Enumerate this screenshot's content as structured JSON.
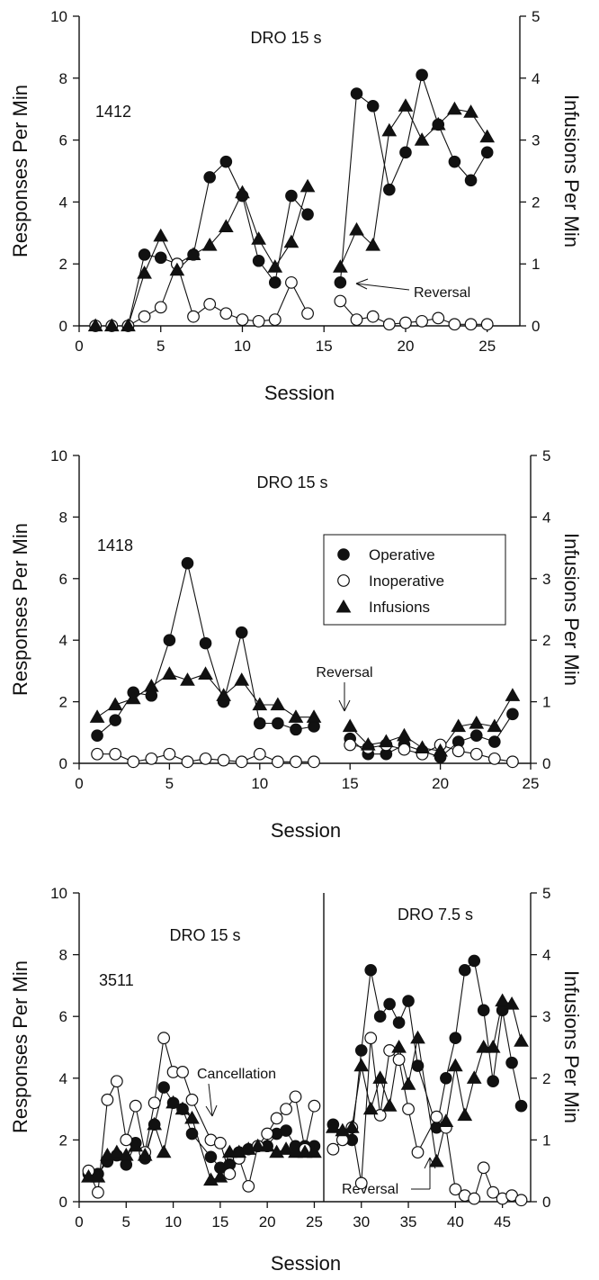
{
  "chart_data": [
    {
      "type": "line",
      "subject": "1412",
      "annotations": [
        "DRO 15 s",
        "Reversal"
      ],
      "xlabel": "Session",
      "ylabel": "Responses Per Min",
      "y2label": "Infusions Per Min",
      "xlim": [
        0,
        27
      ],
      "xticks": [
        0,
        5,
        10,
        15,
        20,
        25
      ],
      "ylim": [
        0,
        10
      ],
      "yticks": [
        0,
        2,
        4,
        6,
        8,
        10
      ],
      "y2lim": [
        0,
        5
      ],
      "y2ticks": [
        0,
        1,
        2,
        3,
        4,
        5
      ],
      "phase_break_after_session": 15,
      "series": [
        {
          "name": "Operative",
          "marker": "filled-circle",
          "axis": "left",
          "x": [
            1,
            2,
            3,
            4,
            5,
            6,
            7,
            8,
            9,
            10,
            11,
            12,
            13,
            14,
            16,
            17,
            18,
            19,
            20,
            21,
            22,
            23,
            24,
            25
          ],
          "values": [
            0.0,
            0.0,
            0.0,
            2.3,
            2.2,
            2.0,
            2.3,
            4.8,
            5.3,
            4.2,
            2.1,
            1.4,
            4.2,
            3.6,
            1.4,
            7.5,
            7.1,
            4.4,
            5.6,
            8.1,
            6.5,
            5.3,
            4.7,
            5.6
          ]
        },
        {
          "name": "Inoperative",
          "marker": "open-circle",
          "axis": "left",
          "x": [
            1,
            2,
            3,
            4,
            5,
            6,
            7,
            8,
            9,
            10,
            11,
            12,
            13,
            14,
            16,
            17,
            18,
            19,
            20,
            21,
            22,
            23,
            24,
            25
          ],
          "values": [
            0.0,
            0.0,
            0.0,
            0.3,
            0.6,
            2.0,
            0.3,
            0.7,
            0.4,
            0.2,
            0.15,
            0.2,
            1.4,
            0.4,
            0.8,
            0.2,
            0.3,
            0.05,
            0.1,
            0.15,
            0.25,
            0.05,
            0.05,
            0.05
          ]
        },
        {
          "name": "Infusions",
          "marker": "filled-triangle",
          "axis": "right",
          "x": [
            1,
            2,
            3,
            4,
            5,
            6,
            7,
            8,
            9,
            10,
            11,
            12,
            13,
            14,
            16,
            17,
            18,
            19,
            20,
            21,
            22,
            23,
            24,
            25
          ],
          "values": [
            0.0,
            0.0,
            0.0,
            0.85,
            1.45,
            0.9,
            1.15,
            1.3,
            1.6,
            2.15,
            1.4,
            0.95,
            1.35,
            2.25,
            0.95,
            1.55,
            1.3,
            3.15,
            3.55,
            3.0,
            3.25,
            3.5,
            3.45,
            3.05
          ]
        }
      ]
    },
    {
      "type": "line",
      "subject": "1418",
      "annotations": [
        "DRO 15 s",
        "Reversal"
      ],
      "xlabel": "Session",
      "ylabel": "Responses Per Min",
      "y2label": "Infusions Per Min",
      "xlim": [
        0,
        25
      ],
      "xticks": [
        0,
        5,
        10,
        15,
        20,
        25
      ],
      "ylim": [
        0,
        10
      ],
      "yticks": [
        0,
        2,
        4,
        6,
        8,
        10
      ],
      "y2lim": [
        0,
        5
      ],
      "y2ticks": [
        0,
        1,
        2,
        3,
        4,
        5
      ],
      "phase_break_after_session": 14,
      "legend": {
        "position": "upper-right",
        "entries": [
          "Operative",
          "Inoperative",
          "Infusions"
        ]
      },
      "series": [
        {
          "name": "Operative",
          "marker": "filled-circle",
          "axis": "left",
          "x": [
            1,
            2,
            3,
            4,
            5,
            6,
            7,
            8,
            9,
            10,
            11,
            12,
            13,
            15,
            16,
            17,
            18,
            19,
            20,
            21,
            22,
            23,
            24
          ],
          "values": [
            0.9,
            1.4,
            2.3,
            2.2,
            4.0,
            6.5,
            3.9,
            2.0,
            4.25,
            1.3,
            1.3,
            1.1,
            1.2,
            0.8,
            0.3,
            0.3,
            0.6,
            0.4,
            0.2,
            0.7,
            0.9,
            0.7,
            1.6
          ]
        },
        {
          "name": "Inoperative",
          "marker": "open-circle",
          "axis": "left",
          "x": [
            1,
            2,
            3,
            4,
            5,
            6,
            7,
            8,
            9,
            10,
            11,
            12,
            13,
            15,
            16,
            17,
            18,
            19,
            20,
            21,
            22,
            23,
            24
          ],
          "values": [
            0.3,
            0.3,
            0.05,
            0.15,
            0.3,
            0.05,
            0.15,
            0.1,
            0.05,
            0.3,
            0.05,
            0.05,
            0.05,
            0.6,
            0.5,
            0.6,
            0.45,
            0.3,
            0.6,
            0.4,
            0.3,
            0.15,
            0.05
          ]
        },
        {
          "name": "Infusions",
          "marker": "filled-triangle",
          "axis": "right",
          "x": [
            1,
            2,
            3,
            4,
            5,
            6,
            7,
            8,
            9,
            10,
            11,
            12,
            13,
            15,
            16,
            17,
            18,
            19,
            20,
            21,
            22,
            23,
            24
          ],
          "values": [
            0.75,
            0.95,
            1.05,
            1.25,
            1.45,
            1.35,
            1.45,
            1.1,
            1.35,
            0.95,
            0.95,
            0.75,
            0.75,
            0.6,
            0.3,
            0.35,
            0.45,
            0.25,
            0.2,
            0.6,
            0.65,
            0.6,
            1.1
          ]
        }
      ]
    },
    {
      "type": "line",
      "subject": "3511",
      "annotations": [
        "DRO 15 s",
        "DRO 7.5 s",
        "Cancellation",
        "Reversal"
      ],
      "xlabel": "Session",
      "ylabel": "Responses Per Min",
      "y2label": "Infusions Per Min",
      "xlim": [
        0,
        48
      ],
      "xticks": [
        0,
        5,
        10,
        15,
        20,
        25,
        30,
        35,
        40,
        45
      ],
      "ylim": [
        0,
        10
      ],
      "yticks": [
        0,
        2,
        4,
        6,
        8,
        10
      ],
      "y2lim": [
        0,
        5
      ],
      "y2ticks": [
        0,
        1,
        2,
        3,
        4,
        5
      ],
      "phase_line_at_session": 26,
      "series": [
        {
          "name": "Operative",
          "marker": "filled-circle",
          "axis": "left",
          "x": [
            1,
            2,
            3,
            4,
            5,
            6,
            7,
            8,
            9,
            10,
            11,
            12,
            14,
            15,
            16,
            17,
            18,
            19,
            20,
            21,
            22,
            23,
            24,
            25,
            27,
            28,
            29,
            30,
            31,
            32,
            33,
            34,
            35,
            36,
            38,
            39,
            40,
            41,
            42,
            43,
            44,
            45,
            46,
            47
          ],
          "values": [
            0.9,
            0.9,
            1.3,
            1.5,
            1.2,
            1.9,
            1.4,
            2.5,
            3.7,
            3.2,
            3.0,
            2.2,
            1.45,
            1.1,
            1.2,
            1.6,
            1.7,
            1.8,
            1.8,
            2.2,
            2.3,
            1.8,
            1.8,
            1.8,
            2.5,
            2.2,
            2.0,
            4.9,
            7.5,
            6.0,
            6.4,
            5.8,
            6.5,
            4.4,
            2.4,
            4.0,
            5.3,
            7.5,
            7.8,
            6.2,
            3.9,
            6.2,
            4.5,
            3.1
          ]
        },
        {
          "name": "Inoperative",
          "marker": "open-circle",
          "axis": "left",
          "x": [
            1,
            2,
            3,
            4,
            5,
            6,
            7,
            8,
            9,
            10,
            11,
            12,
            14,
            15,
            16,
            17,
            18,
            19,
            20,
            21,
            22,
            23,
            24,
            25,
            27,
            28,
            29,
            30,
            31,
            32,
            33,
            34,
            35,
            36,
            38,
            39,
            40,
            41,
            42,
            43,
            44,
            45,
            46,
            47
          ],
          "values": [
            1.0,
            0.3,
            3.3,
            3.9,
            2.0,
            3.1,
            1.6,
            3.2,
            5.3,
            4.2,
            4.2,
            3.3,
            2.0,
            1.9,
            0.9,
            1.4,
            0.5,
            1.8,
            2.2,
            2.7,
            3.0,
            3.4,
            1.7,
            3.1,
            1.7,
            2.0,
            2.4,
            0.6,
            5.3,
            2.8,
            4.9,
            4.6,
            3.0,
            1.6,
            2.75,
            2.4,
            0.4,
            0.2,
            0.1,
            1.1,
            0.3,
            0.1,
            0.2,
            0.05
          ]
        },
        {
          "name": "Infusions",
          "marker": "filled-triangle",
          "axis": "right",
          "x": [
            1,
            2,
            3,
            4,
            5,
            6,
            7,
            8,
            9,
            10,
            11,
            12,
            14,
            15,
            16,
            17,
            18,
            19,
            20,
            21,
            22,
            23,
            24,
            25,
            27,
            28,
            29,
            30,
            31,
            32,
            33,
            34,
            35,
            36,
            38,
            39,
            40,
            41,
            42,
            43,
            44,
            45,
            46,
            47
          ],
          "values": [
            0.4,
            0.4,
            0.75,
            0.8,
            0.75,
            0.9,
            0.75,
            1.25,
            0.8,
            1.6,
            1.5,
            1.35,
            0.35,
            0.4,
            0.8,
            0.8,
            0.85,
            0.9,
            0.9,
            0.8,
            0.85,
            0.8,
            0.8,
            0.8,
            1.2,
            1.15,
            1.2,
            2.2,
            1.5,
            2.0,
            1.55,
            2.5,
            1.9,
            2.65,
            0.65,
            1.3,
            2.2,
            1.4,
            2.0,
            2.5,
            2.5,
            3.25,
            3.2,
            2.6
          ]
        }
      ]
    }
  ]
}
